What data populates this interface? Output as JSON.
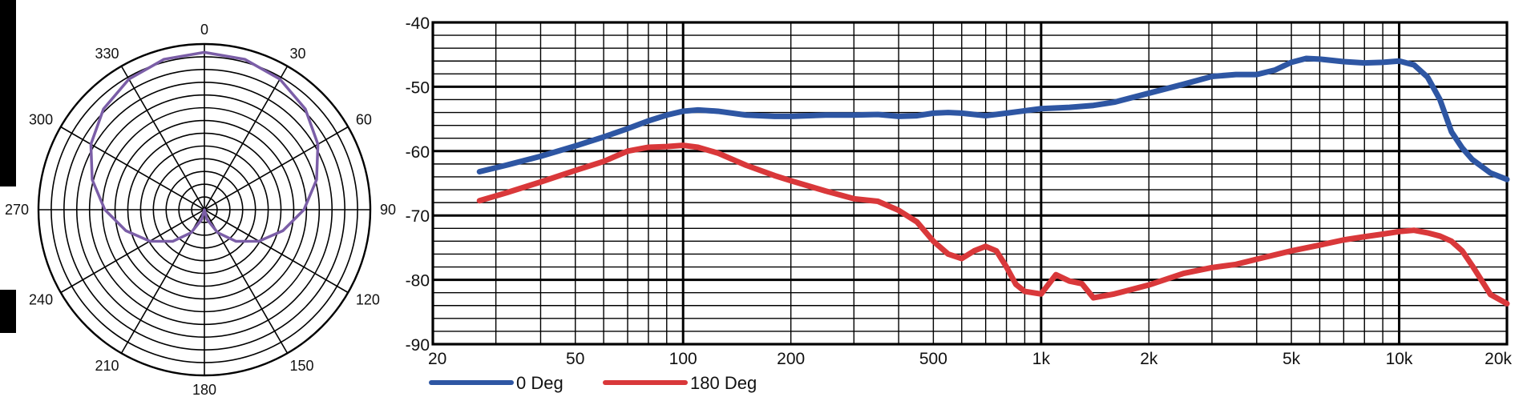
{
  "chart_data": [
    {
      "type": "polar",
      "angle_labels": [
        "0",
        "30",
        "60",
        "90",
        "120",
        "150",
        "180",
        "210",
        "240",
        "270",
        "300",
        "330"
      ],
      "rings": 13,
      "spokes": 12,
      "series": [
        {
          "pattern": "cardioid",
          "color": "#7b5ea7",
          "points": [
            {
              "angle": 0,
              "r": 0.95
            },
            {
              "angle": 15,
              "r": 0.94
            },
            {
              "angle": 30,
              "r": 0.91
            },
            {
              "angle": 45,
              "r": 0.86
            },
            {
              "angle": 60,
              "r": 0.79
            },
            {
              "angle": 75,
              "r": 0.7
            },
            {
              "angle": 90,
              "r": 0.6
            },
            {
              "angle": 105,
              "r": 0.49
            },
            {
              "angle": 120,
              "r": 0.38
            },
            {
              "angle": 135,
              "r": 0.27
            },
            {
              "angle": 150,
              "r": 0.16
            },
            {
              "angle": 165,
              "r": 0.06
            },
            {
              "angle": 180,
              "r": 0.0
            },
            {
              "angle": 195,
              "r": 0.06
            },
            {
              "angle": 210,
              "r": 0.16
            },
            {
              "angle": 225,
              "r": 0.27
            },
            {
              "angle": 240,
              "r": 0.38
            },
            {
              "angle": 255,
              "r": 0.49
            },
            {
              "angle": 270,
              "r": 0.6
            },
            {
              "angle": 285,
              "r": 0.7
            },
            {
              "angle": 300,
              "r": 0.79
            },
            {
              "angle": 315,
              "r": 0.86
            },
            {
              "angle": 330,
              "r": 0.91
            },
            {
              "angle": 345,
              "r": 0.94
            }
          ]
        }
      ]
    },
    {
      "type": "line",
      "x_scale": "log",
      "xlim": [
        20,
        20000
      ],
      "ylim": [
        -90,
        -40
      ],
      "x_tick_labels": [
        {
          "value": 20,
          "label": "20"
        },
        {
          "value": 50,
          "label": "50"
        },
        {
          "value": 100,
          "label": "100"
        },
        {
          "value": 200,
          "label": "200"
        },
        {
          "value": 500,
          "label": "500"
        },
        {
          "value": 1000,
          "label": "1k"
        },
        {
          "value": 2000,
          "label": "2k"
        },
        {
          "value": 5000,
          "label": "5k"
        },
        {
          "value": 10000,
          "label": "10k"
        },
        {
          "value": 20000,
          "label": "20k"
        }
      ],
      "y_tick_labels": [
        {
          "value": -40,
          "label": "-40"
        },
        {
          "value": -50,
          "label": "-50"
        },
        {
          "value": -60,
          "label": "-60"
        },
        {
          "value": -70,
          "label": "-70"
        },
        {
          "value": -80,
          "label": "-80"
        },
        {
          "value": -90,
          "label": "-90"
        }
      ],
      "grid": true,
      "legend_position": "bottom-left",
      "series": [
        {
          "name": "0 Deg",
          "color": "#2e56a3",
          "points": [
            [
              27,
              -63.2
            ],
            [
              32,
              -62.2
            ],
            [
              40,
              -60.8
            ],
            [
              50,
              -59.2
            ],
            [
              60,
              -57.8
            ],
            [
              70,
              -56.5
            ],
            [
              80,
              -55.3
            ],
            [
              90,
              -54.4
            ],
            [
              100,
              -53.8
            ],
            [
              110,
              -53.6
            ],
            [
              125,
              -53.8
            ],
            [
              150,
              -54.4
            ],
            [
              180,
              -54.6
            ],
            [
              200,
              -54.6
            ],
            [
              250,
              -54.4
            ],
            [
              300,
              -54.4
            ],
            [
              350,
              -54.3
            ],
            [
              400,
              -54.6
            ],
            [
              450,
              -54.5
            ],
            [
              500,
              -54.1
            ],
            [
              550,
              -54.0
            ],
            [
              600,
              -54.1
            ],
            [
              700,
              -54.5
            ],
            [
              800,
              -54.1
            ],
            [
              1000,
              -53.4
            ],
            [
              1200,
              -53.2
            ],
            [
              1400,
              -52.9
            ],
            [
              1600,
              -52.4
            ],
            [
              2000,
              -51.0
            ],
            [
              2500,
              -49.6
            ],
            [
              3000,
              -48.4
            ],
            [
              3500,
              -48.1
            ],
            [
              4000,
              -48.1
            ],
            [
              4500,
              -47.4
            ],
            [
              5000,
              -46.2
            ],
            [
              5500,
              -45.6
            ],
            [
              6000,
              -45.7
            ],
            [
              7000,
              -46.1
            ],
            [
              8000,
              -46.3
            ],
            [
              9000,
              -46.2
            ],
            [
              10000,
              -46.0
            ],
            [
              11000,
              -46.6
            ],
            [
              12000,
              -48.5
            ],
            [
              13000,
              -52.0
            ],
            [
              14000,
              -57.0
            ],
            [
              15000,
              -59.5
            ],
            [
              16000,
              -61.3
            ],
            [
              18000,
              -63.4
            ],
            [
              20000,
              -64.4
            ]
          ]
        },
        {
          "name": "180 Deg",
          "color": "#d9383a",
          "points": [
            [
              27,
              -67.7
            ],
            [
              32,
              -66.5
            ],
            [
              40,
              -64.8
            ],
            [
              50,
              -63.0
            ],
            [
              60,
              -61.6
            ],
            [
              70,
              -60.0
            ],
            [
              80,
              -59.4
            ],
            [
              90,
              -59.3
            ],
            [
              100,
              -59.1
            ],
            [
              110,
              -59.4
            ],
            [
              125,
              -60.3
            ],
            [
              150,
              -62.2
            ],
            [
              180,
              -63.8
            ],
            [
              200,
              -64.6
            ],
            [
              250,
              -66.2
            ],
            [
              300,
              -67.4
            ],
            [
              350,
              -67.8
            ],
            [
              400,
              -69.2
            ],
            [
              450,
              -71.0
            ],
            [
              500,
              -74.0
            ],
            [
              550,
              -76.0
            ],
            [
              600,
              -76.7
            ],
            [
              650,
              -75.5
            ],
            [
              700,
              -74.8
            ],
            [
              750,
              -75.5
            ],
            [
              800,
              -78.0
            ],
            [
              850,
              -80.7
            ],
            [
              900,
              -81.8
            ],
            [
              1000,
              -82.2
            ],
            [
              1100,
              -79.2
            ],
            [
              1200,
              -80.2
            ],
            [
              1300,
              -80.6
            ],
            [
              1400,
              -82.8
            ],
            [
              1600,
              -82.2
            ],
            [
              2000,
              -80.8
            ],
            [
              2500,
              -79.0
            ],
            [
              3000,
              -78.1
            ],
            [
              3500,
              -77.6
            ],
            [
              4000,
              -76.8
            ],
            [
              5000,
              -75.5
            ],
            [
              6000,
              -74.6
            ],
            [
              7000,
              -73.8
            ],
            [
              8000,
              -73.3
            ],
            [
              9000,
              -72.9
            ],
            [
              10000,
              -72.5
            ],
            [
              11000,
              -72.3
            ],
            [
              12000,
              -72.7
            ],
            [
              13000,
              -73.2
            ],
            [
              14000,
              -74.0
            ],
            [
              15000,
              -75.5
            ],
            [
              16000,
              -77.8
            ],
            [
              18000,
              -82.3
            ],
            [
              20000,
              -83.7
            ]
          ]
        }
      ]
    }
  ]
}
